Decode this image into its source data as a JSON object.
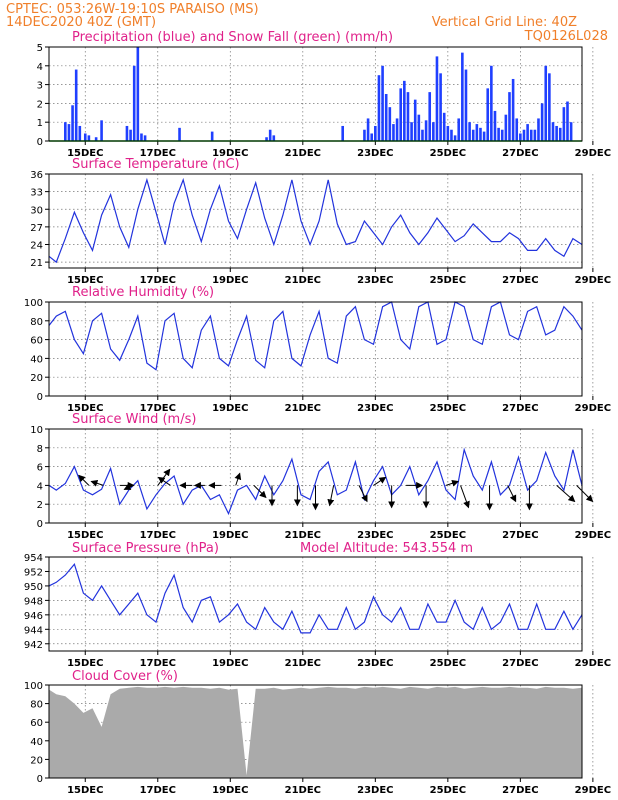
{
  "header": {
    "line1_left": "CPTEC:    053:26W-19:10S   PARAISO (MS)",
    "line2_left": "14DEC2020 40Z (GMT)",
    "line1_right": "Vertical Grid Line: 40Z",
    "line2_right": "TQ0126L028"
  },
  "dates": [
    "15DEC",
    "17DEC",
    "19DEC",
    "21DEC",
    "23DEC",
    "25DEC",
    "27DEC",
    "29DEC"
  ],
  "colors": {
    "precip": "#1f3fff",
    "snow": "#00aa00",
    "line": "#2233dd",
    "cloud": "#aaaaaa",
    "title": "#e0218a",
    "header": "#f07f2a"
  },
  "chart_data": [
    {
      "id": "precip",
      "type": "bar",
      "title": "Precipitation (blue) and Snow Fall (green) (mm/h)",
      "ylim": [
        0,
        5
      ],
      "yticks": [
        "0",
        "1",
        "2",
        "3",
        "4",
        "5"
      ],
      "series": [
        {
          "name": "Precipitation",
          "x": [
            0.45,
            0.55,
            0.65,
            0.75,
            0.85,
            1.0,
            1.1,
            1.3,
            1.45,
            2.15,
            2.25,
            2.35,
            2.45,
            2.55,
            2.65,
            3.6,
            4.5,
            6.0,
            6.1,
            6.2,
            8.1,
            8.7,
            8.8,
            8.9,
            9.0,
            9.1,
            9.2,
            9.3,
            9.4,
            9.5,
            9.6,
            9.7,
            9.8,
            9.9,
            10.0,
            10.1,
            10.2,
            10.3,
            10.4,
            10.5,
            10.6,
            10.7,
            10.8,
            10.9,
            11.0,
            11.1,
            11.2,
            11.3,
            11.4,
            11.5,
            11.6,
            11.7,
            11.8,
            11.9,
            12.0,
            12.1,
            12.2,
            12.3,
            12.4,
            12.5,
            12.6,
            12.7,
            12.8,
            12.9,
            13.0,
            13.1,
            13.2,
            13.3,
            13.4,
            13.5,
            13.6,
            13.7,
            13.8,
            13.9,
            14.0,
            14.1,
            14.2,
            14.3,
            14.4
          ],
          "values": [
            1.0,
            0.9,
            1.9,
            3.8,
            0.8,
            0.4,
            0.3,
            0.2,
            1.1,
            0.8,
            0.6,
            4.0,
            5.0,
            0.4,
            0.3,
            0.7,
            0.5,
            0.2,
            0.6,
            0.3,
            0.8,
            0.6,
            1.2,
            0.4,
            0.8,
            3.5,
            4.0,
            2.5,
            1.8,
            0.9,
            1.2,
            2.8,
            3.2,
            2.6,
            1.0,
            2.2,
            1.4,
            0.6,
            1.1,
            2.6,
            1.0,
            4.5,
            3.6,
            1.5,
            0.8,
            0.6,
            0.3,
            1.2,
            4.7,
            3.8,
            1.0,
            0.6,
            0.9,
            0.7,
            0.5,
            2.8,
            4.0,
            1.6,
            0.7,
            0.6,
            1.4,
            2.6,
            3.3,
            1.2,
            0.4,
            0.6,
            0.9,
            0.6,
            0.6,
            1.2,
            2.0,
            4.0,
            3.6,
            1.0,
            0.8,
            0.7,
            1.8,
            2.1,
            1.0
          ]
        },
        {
          "name": "Snow Fall",
          "x": [
            0,
            14.7
          ],
          "values": [
            0,
            0
          ]
        }
      ]
    },
    {
      "id": "temp",
      "type": "line",
      "title": "Surface Temperature (nC)",
      "ylim": [
        20,
        36
      ],
      "yticks": [
        "21",
        "24",
        "27",
        "30",
        "33",
        "36"
      ],
      "x": [
        0.0,
        0.2,
        0.45,
        0.7,
        0.95,
        1.2,
        1.45,
        1.7,
        1.95,
        2.2,
        2.45,
        2.7,
        2.95,
        3.2,
        3.45,
        3.7,
        3.95,
        4.2,
        4.45,
        4.7,
        4.95,
        5.2,
        5.45,
        5.7,
        5.95,
        6.2,
        6.45,
        6.7,
        6.95,
        7.2,
        7.45,
        7.7,
        7.95,
        8.2,
        8.45,
        8.7,
        8.95,
        9.2,
        9.45,
        9.7,
        9.95,
        10.2,
        10.45,
        10.7,
        10.95,
        11.2,
        11.45,
        11.7,
        11.95,
        12.2,
        12.45,
        12.7,
        12.95,
        13.2,
        13.45,
        13.7,
        13.95,
        14.2,
        14.45,
        14.7
      ],
      "values": [
        22.0,
        21.0,
        25.0,
        29.5,
        26.0,
        23.0,
        29.0,
        32.5,
        27.0,
        23.5,
        30.0,
        35.0,
        29.5,
        24.0,
        31.0,
        35.0,
        29.0,
        24.5,
        30.0,
        34.0,
        28.0,
        25.0,
        30.0,
        34.5,
        28.5,
        24.0,
        29.0,
        35.0,
        28.0,
        24.0,
        28.0,
        35.0,
        27.5,
        24.0,
        24.5,
        28.0,
        26.0,
        24.0,
        27.0,
        29.0,
        26.0,
        24.0,
        26.0,
        28.5,
        26.5,
        24.5,
        25.5,
        27.5,
        26.0,
        24.5,
        24.5,
        26.0,
        25.0,
        23.0,
        23.0,
        25.0,
        23.0,
        22.0,
        25.0,
        24.0
      ]
    },
    {
      "id": "rh",
      "type": "line",
      "title": "Relative Humidity (%)",
      "ylim": [
        0,
        100
      ],
      "yticks": [
        "0",
        "20",
        "40",
        "60",
        "80",
        "100"
      ],
      "x": [
        0.0,
        0.2,
        0.45,
        0.7,
        0.95,
        1.2,
        1.45,
        1.7,
        1.95,
        2.2,
        2.45,
        2.7,
        2.95,
        3.2,
        3.45,
        3.7,
        3.95,
        4.2,
        4.45,
        4.7,
        4.95,
        5.2,
        5.45,
        5.7,
        5.95,
        6.2,
        6.45,
        6.7,
        6.95,
        7.2,
        7.45,
        7.7,
        7.95,
        8.2,
        8.45,
        8.7,
        8.95,
        9.2,
        9.45,
        9.7,
        9.95,
        10.2,
        10.45,
        10.7,
        10.95,
        11.2,
        11.45,
        11.7,
        11.95,
        12.2,
        12.45,
        12.7,
        12.95,
        13.2,
        13.45,
        13.7,
        13.95,
        14.2,
        14.45,
        14.7
      ],
      "values": [
        75.0,
        85.0,
        90.0,
        60.0,
        45.0,
        80.0,
        88.0,
        50.0,
        38.0,
        60.0,
        85.0,
        35.0,
        28.0,
        80.0,
        88.0,
        40.0,
        30.0,
        70.0,
        85.0,
        40.0,
        32.0,
        60.0,
        85.0,
        38.0,
        30.0,
        80.0,
        90.0,
        40.0,
        32.0,
        65.0,
        90.0,
        40.0,
        35.0,
        85.0,
        95.0,
        60.0,
        55.0,
        95.0,
        100.0,
        60.0,
        50.0,
        95.0,
        100.0,
        55.0,
        60.0,
        100.0,
        95.0,
        60.0,
        55.0,
        95.0,
        100.0,
        65.0,
        60.0,
        90.0,
        95.0,
        65.0,
        70.0,
        95.0,
        85.0,
        70.0
      ]
    },
    {
      "id": "wind",
      "type": "line",
      "title": "Surface Wind (m/s)",
      "ylim": [
        0,
        10
      ],
      "yticks": [
        "0",
        "2",
        "4",
        "6",
        "8",
        "10"
      ],
      "x": [
        0.0,
        0.2,
        0.45,
        0.7,
        0.95,
        1.2,
        1.45,
        1.7,
        1.95,
        2.2,
        2.45,
        2.7,
        2.95,
        3.2,
        3.45,
        3.7,
        3.95,
        4.2,
        4.45,
        4.7,
        4.95,
        5.2,
        5.45,
        5.7,
        5.95,
        6.2,
        6.45,
        6.7,
        6.95,
        7.2,
        7.45,
        7.7,
        7.95,
        8.2,
        8.45,
        8.7,
        8.95,
        9.2,
        9.45,
        9.7,
        9.95,
        10.2,
        10.45,
        10.7,
        10.95,
        11.2,
        11.45,
        11.7,
        11.95,
        12.2,
        12.45,
        12.7,
        12.95,
        13.2,
        13.45,
        13.7,
        13.95,
        14.2,
        14.45,
        14.7
      ],
      "values": [
        4.0,
        3.5,
        4.2,
        6.0,
        3.5,
        3.0,
        3.6,
        5.8,
        2.0,
        3.5,
        4.5,
        1.5,
        3.0,
        4.2,
        5.0,
        2.0,
        3.5,
        4.0,
        2.5,
        3.0,
        1.0,
        3.5,
        4.0,
        2.5,
        5.0,
        3.0,
        4.5,
        6.8,
        3.0,
        2.5,
        5.5,
        6.5,
        3.0,
        3.5,
        6.5,
        2.5,
        4.5,
        6.0,
        3.0,
        4.0,
        6.0,
        3.0,
        4.5,
        6.5,
        3.5,
        2.5,
        7.8,
        5.0,
        3.5,
        6.5,
        3.0,
        4.0,
        7.0,
        3.5,
        4.5,
        7.5,
        5.0,
        3.5,
        7.8,
        4.0
      ],
      "vectors": [
        {
          "x": 1.1,
          "u": -2.5,
          "v": 2.5
        },
        {
          "x": 1.5,
          "u": -3.0,
          "v": 1.0
        },
        {
          "x": 1.95,
          "u": 3.5,
          "v": 0.0
        },
        {
          "x": 2.3,
          "u": -2.0,
          "v": -1.0
        },
        {
          "x": 3.0,
          "u": 3.0,
          "v": 4.0
        },
        {
          "x": 3.35,
          "u": -3.0,
          "v": 2.0
        },
        {
          "x": 3.95,
          "u": -3.0,
          "v": 0.0
        },
        {
          "x": 4.3,
          "u": -2.5,
          "v": 0.0
        },
        {
          "x": 4.75,
          "u": -3.0,
          "v": 0.0
        },
        {
          "x": 5.15,
          "u": 1.0,
          "v": 3.0
        },
        {
          "x": 5.65,
          "u": 3.0,
          "v": -3.0
        },
        {
          "x": 6.15,
          "u": 0.0,
          "v": -5.0
        },
        {
          "x": 6.85,
          "u": 0.0,
          "v": -5.0
        },
        {
          "x": 7.35,
          "u": 0.0,
          "v": -6.0
        },
        {
          "x": 7.85,
          "u": -1.0,
          "v": -5.0
        },
        {
          "x": 8.55,
          "u": 2.0,
          "v": -4.0
        },
        {
          "x": 8.95,
          "u": 3.0,
          "v": 2.0
        },
        {
          "x": 9.45,
          "u": 0.0,
          "v": -5.5
        },
        {
          "x": 9.85,
          "u": 4.0,
          "v": 0.0
        },
        {
          "x": 10.4,
          "u": 0.0,
          "v": -5.5
        },
        {
          "x": 10.95,
          "u": 3.0,
          "v": 1.0
        },
        {
          "x": 11.35,
          "u": 2.0,
          "v": -5.5
        },
        {
          "x": 12.15,
          "u": 0.0,
          "v": -6.0
        },
        {
          "x": 12.65,
          "u": 2.0,
          "v": -4.0
        },
        {
          "x": 13.25,
          "u": 0.0,
          "v": -6.0
        },
        {
          "x": 14.0,
          "u": 4.5,
          "v": -4.0
        },
        {
          "x": 14.55,
          "u": 4.0,
          "v": -4.0
        }
      ]
    },
    {
      "id": "pressure",
      "type": "line",
      "title": "Surface Pressure (hPa)",
      "annotation": "Model Altitude: 543.554  m",
      "ylim": [
        941,
        954
      ],
      "yticks": [
        "942",
        "944",
        "946",
        "948",
        "950",
        "952",
        "954"
      ],
      "x": [
        0.0,
        0.2,
        0.45,
        0.7,
        0.95,
        1.2,
        1.45,
        1.7,
        1.95,
        2.2,
        2.45,
        2.7,
        2.95,
        3.2,
        3.45,
        3.7,
        3.95,
        4.2,
        4.45,
        4.7,
        4.95,
        5.2,
        5.45,
        5.7,
        5.95,
        6.2,
        6.45,
        6.7,
        6.95,
        7.2,
        7.45,
        7.7,
        7.95,
        8.2,
        8.45,
        8.7,
        8.95,
        9.2,
        9.45,
        9.7,
        9.95,
        10.2,
        10.45,
        10.7,
        10.95,
        11.2,
        11.45,
        11.7,
        11.95,
        12.2,
        12.45,
        12.7,
        12.95,
        13.2,
        13.45,
        13.7,
        13.95,
        14.2,
        14.45,
        14.7
      ],
      "values": [
        950.0,
        950.5,
        951.5,
        953.0,
        949.0,
        948.0,
        950.0,
        948.0,
        946.0,
        947.5,
        949.0,
        946.0,
        945.0,
        949.0,
        951.5,
        947.0,
        945.0,
        948.0,
        948.5,
        945.0,
        946.0,
        947.5,
        945.0,
        944.0,
        947.0,
        945.0,
        944.0,
        946.5,
        943.5,
        943.5,
        946.0,
        944.0,
        944.0,
        947.0,
        944.0,
        945.0,
        948.5,
        946.0,
        945.0,
        947.0,
        944.0,
        944.0,
        947.5,
        945.0,
        945.0,
        948.0,
        945.0,
        944.0,
        947.0,
        944.0,
        945.0,
        947.5,
        944.0,
        944.0,
        947.5,
        944.0,
        944.0,
        946.5,
        944.0,
        946.0
      ]
    },
    {
      "id": "cloud",
      "type": "area",
      "title": "Cloud Cover (%)",
      "ylim": [
        0,
        100
      ],
      "yticks": [
        "0",
        "20",
        "40",
        "60",
        "80",
        "100"
      ],
      "x": [
        0.0,
        0.2,
        0.45,
        0.7,
        0.95,
        1.2,
        1.45,
        1.7,
        1.95,
        2.2,
        2.45,
        2.7,
        2.95,
        3.2,
        3.45,
        3.7,
        3.95,
        4.2,
        4.45,
        4.7,
        4.95,
        5.2,
        5.45,
        5.7,
        5.95,
        6.2,
        6.45,
        6.7,
        6.95,
        7.2,
        7.45,
        7.7,
        7.95,
        8.2,
        8.45,
        8.7,
        8.95,
        9.2,
        9.45,
        9.7,
        9.95,
        10.2,
        10.45,
        10.7,
        10.95,
        11.2,
        11.45,
        11.7,
        11.95,
        12.2,
        12.45,
        12.7,
        12.95,
        13.2,
        13.45,
        13.7,
        13.95,
        14.2,
        14.45,
        14.7
      ],
      "values": [
        95.0,
        90.0,
        88.0,
        80.0,
        70.0,
        75.0,
        55.0,
        90.0,
        96.0,
        97.0,
        98.0,
        97.0,
        97.0,
        98.0,
        97.0,
        98.0,
        97.0,
        97.0,
        96.0,
        97.0,
        95.0,
        96.0,
        3.0,
        96.0,
        96.0,
        97.0,
        95.0,
        96.0,
        97.0,
        96.0,
        97.0,
        98.0,
        97.0,
        97.0,
        96.0,
        98.0,
        97.0,
        98.0,
        97.0,
        96.0,
        98.0,
        97.0,
        96.0,
        98.0,
        97.0,
        98.0,
        96.0,
        97.0,
        98.0,
        97.0,
        97.0,
        98.0,
        97.0,
        97.0,
        96.0,
        98.0,
        97.0,
        97.0,
        96.0,
        97.0
      ]
    }
  ]
}
